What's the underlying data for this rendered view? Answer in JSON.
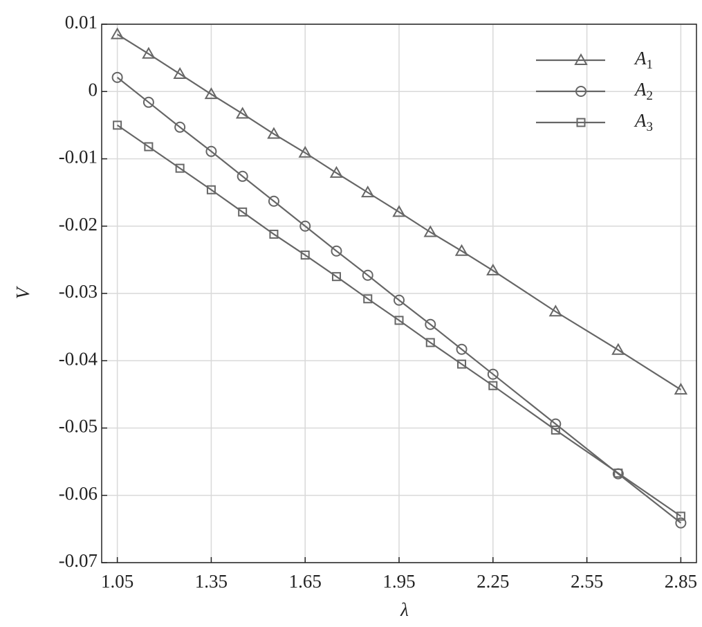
{
  "chart_data": {
    "type": "line",
    "xlabel": "λ",
    "ylabel": "V",
    "x": [
      1.05,
      1.15,
      1.25,
      1.35,
      1.45,
      1.55,
      1.65,
      1.75,
      1.85,
      1.95,
      2.05,
      2.15,
      2.25,
      2.45,
      2.65,
      2.85
    ],
    "series": [
      {
        "name": "A1",
        "color": "#666666",
        "marker": "triangle",
        "values": [
          0.0085,
          0.0056,
          0.0026,
          -0.0004,
          -0.0033,
          -0.0063,
          -0.0091,
          -0.0121,
          -0.015,
          -0.0179,
          -0.0209,
          -0.0237,
          -0.0266,
          -0.0327,
          -0.0384,
          -0.0443
        ]
      },
      {
        "name": "A2",
        "color": "#666666",
        "marker": "circle",
        "values": [
          0.0021,
          -0.0016,
          -0.0053,
          -0.0089,
          -0.0126,
          -0.0163,
          -0.02,
          -0.0237,
          -0.0273,
          -0.031,
          -0.0346,
          -0.0383,
          -0.042,
          -0.0494,
          -0.0568,
          -0.0641
        ]
      },
      {
        "name": "A3",
        "color": "#666666",
        "marker": "square",
        "values": [
          -0.005,
          -0.0082,
          -0.0114,
          -0.0146,
          -0.0179,
          -0.0212,
          -0.0243,
          -0.0275,
          -0.0308,
          -0.034,
          -0.0373,
          -0.0405,
          -0.0437,
          -0.0503,
          -0.0567,
          -0.0631
        ]
      }
    ],
    "xlim": [
      1.0,
      2.9
    ],
    "xticks": [
      1.05,
      1.35,
      1.65,
      1.95,
      2.25,
      2.55,
      2.85
    ],
    "ylim": [
      -0.07,
      0.01
    ],
    "yticks": [
      0.01,
      0,
      -0.01,
      -0.02,
      -0.03,
      -0.04,
      -0.05,
      -0.06,
      -0.07
    ],
    "grid": true,
    "legend": "upper right"
  }
}
